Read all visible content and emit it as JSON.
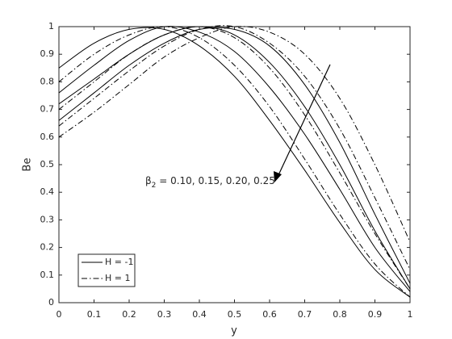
{
  "chart_data": {
    "type": "line",
    "xlabel": "y",
    "ylabel": "Be",
    "x": [
      0,
      0.1,
      0.2,
      0.3,
      0.4,
      0.5,
      0.6,
      0.7,
      0.8,
      0.9,
      1
    ],
    "series": [
      {
        "name": "H = -1",
        "color": "#000000",
        "dash": "solid",
        "values": [
          0.85,
          0.94,
          0.99,
          0.99,
          0.93,
          0.82,
          0.66,
          0.48,
          0.29,
          0.12,
          0.02
        ]
      },
      {
        "name": "H = -1",
        "color": "#000000",
        "dash": "solid",
        "values": [
          0.76,
          0.86,
          0.95,
          1.0,
          0.98,
          0.91,
          0.78,
          0.61,
          0.41,
          0.2,
          0.04
        ]
      },
      {
        "name": "H = -1",
        "color": "#000000",
        "dash": "solid",
        "values": [
          0.72,
          0.81,
          0.9,
          0.97,
          1.0,
          0.97,
          0.87,
          0.71,
          0.5,
          0.26,
          0.05
        ]
      },
      {
        "name": "H = -1",
        "color": "#000000",
        "dash": "solid",
        "values": [
          0.66,
          0.76,
          0.86,
          0.94,
          0.99,
          0.99,
          0.93,
          0.79,
          0.58,
          0.32,
          0.07
        ]
      },
      {
        "name": "H = 1",
        "color": "#000000",
        "dash": "dashdot",
        "values": [
          0.8,
          0.9,
          0.97,
          1.0,
          0.96,
          0.86,
          0.71,
          0.52,
          0.32,
          0.14,
          0.02
        ]
      },
      {
        "name": "H = 1",
        "color": "#000000",
        "dash": "dashdot",
        "values": [
          0.7,
          0.8,
          0.9,
          0.97,
          1.0,
          0.96,
          0.85,
          0.68,
          0.47,
          0.25,
          0.05
        ]
      },
      {
        "name": "H = 1",
        "color": "#000000",
        "dash": "dashdot",
        "values": [
          0.64,
          0.74,
          0.84,
          0.93,
          0.99,
          1.0,
          0.94,
          0.82,
          0.63,
          0.38,
          0.12
        ]
      },
      {
        "name": "H = 1",
        "color": "#000000",
        "dash": "dashdot",
        "values": [
          0.6,
          0.69,
          0.79,
          0.89,
          0.96,
          1.0,
          0.98,
          0.9,
          0.74,
          0.5,
          0.22
        ]
      }
    ],
    "annotation": {
      "symbol": "β",
      "subscript": "2",
      "text": " = 0.10, 0.15, 0.20, 0.25"
    },
    "xlim": [
      0,
      1
    ],
    "ylim": [
      0,
      1
    ],
    "xticks": [
      0,
      0.1,
      0.2,
      0.3,
      0.4,
      0.5,
      0.6,
      0.7,
      0.8,
      0.9,
      1
    ],
    "yticks": [
      0,
      0.1,
      0.2,
      0.3,
      0.4,
      0.5,
      0.6,
      0.7,
      0.8,
      0.9,
      1
    ],
    "grid": false,
    "legend": "lower-left"
  }
}
